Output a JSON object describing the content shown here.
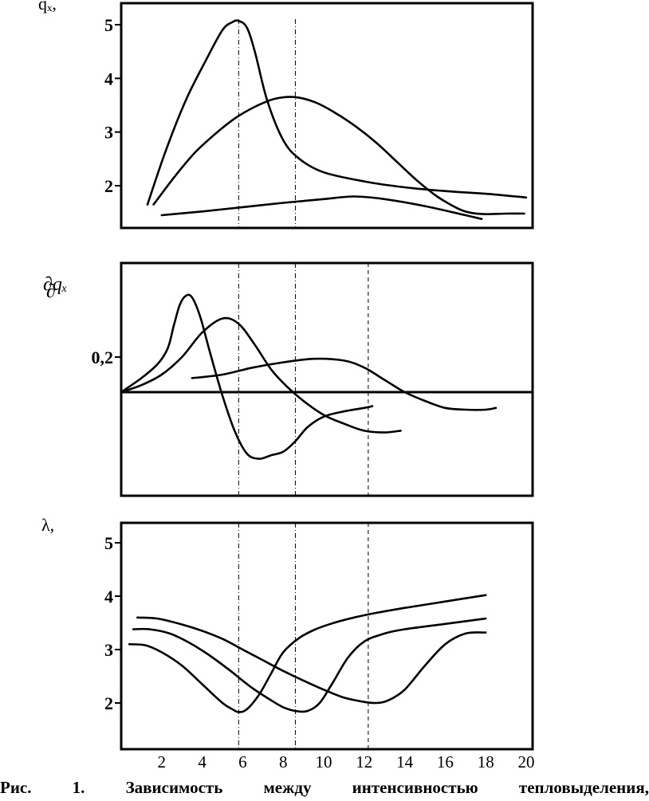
{
  "caption": "Рис.   1.   Зависимость   между   интенсивностью   тепловыделения,",
  "chart_data": [
    {
      "type": "line",
      "ylabel": "qₓ,",
      "x_ticks": [
        "2",
        "4",
        "6",
        "8",
        "10",
        "12",
        "14",
        "16",
        "18",
        "20"
      ],
      "y_ticks": [
        "5",
        "4",
        "3",
        "2"
      ],
      "xlim": [
        0,
        20.3
      ],
      "ylim": [
        1.25,
        5.4
      ],
      "series": [
        {
          "x": [
            1.3,
            2.2,
            3.2,
            4.2,
            5.0,
            5.5,
            5.8,
            6.2,
            6.6,
            7.2,
            8.0,
            8.8,
            10,
            12,
            14,
            16,
            18,
            20
          ],
          "y": [
            1.65,
            2.65,
            3.6,
            4.35,
            4.9,
            5.05,
            5.07,
            4.95,
            4.5,
            3.6,
            2.85,
            2.5,
            2.25,
            2.08,
            1.97,
            1.9,
            1.85,
            1.78
          ]
        },
        {
          "x": [
            1.6,
            2.6,
            3.6,
            4.6,
            5.6,
            6.6,
            7.6,
            8.6,
            9.6,
            10.6,
            11.6,
            12.6,
            13.6,
            14.6,
            15.6,
            16.6,
            17.2,
            18.0,
            19.0,
            19.9
          ],
          "y": [
            1.65,
            2.15,
            2.6,
            2.95,
            3.25,
            3.47,
            3.62,
            3.65,
            3.55,
            3.35,
            3.1,
            2.8,
            2.45,
            2.1,
            1.8,
            1.58,
            1.5,
            1.47,
            1.48,
            1.48
          ]
        },
        {
          "x": [
            2.0,
            4.0,
            6.0,
            8.0,
            10.0,
            11.5,
            13.0,
            15.0,
            17.0,
            17.8
          ],
          "y": [
            1.45,
            1.52,
            1.6,
            1.68,
            1.75,
            1.8,
            1.75,
            1.62,
            1.45,
            1.38
          ]
        }
      ],
      "guides_x": [
        5.8,
        8.6
      ]
    },
    {
      "type": "line",
      "ylabel": "∂qₓ",
      "ylabel_line2": "∂",
      "x_ticks": [],
      "y_ticks": [
        "0,2"
      ],
      "xlim": [
        0,
        20.3
      ],
      "ylim": [
        -0.45,
        0.6
      ],
      "baseline": 0.0,
      "series": [
        {
          "x": [
            0,
            1.0,
            1.8,
            2.3,
            2.6,
            2.9,
            3.2,
            3.5,
            3.9,
            4.4,
            5.0,
            5.6,
            6.2,
            6.8,
            7.4,
            8.0,
            8.6,
            9.2,
            10.0,
            11.0,
            12.0,
            12.4
          ],
          "y": [
            0.0,
            0.08,
            0.16,
            0.25,
            0.38,
            0.5,
            0.55,
            0.54,
            0.43,
            0.22,
            -0.02,
            -0.22,
            -0.35,
            -0.38,
            -0.36,
            -0.34,
            -0.28,
            -0.2,
            -0.14,
            -0.11,
            -0.09,
            -0.08
          ]
        },
        {
          "x": [
            0,
            1.0,
            2.0,
            3.0,
            4.0,
            5.0,
            5.8,
            6.6,
            7.4,
            8.2,
            9.0,
            10.0,
            11.0,
            12.0,
            13.0,
            13.8
          ],
          "y": [
            0.0,
            0.04,
            0.1,
            0.2,
            0.34,
            0.42,
            0.39,
            0.27,
            0.13,
            0.03,
            -0.05,
            -0.13,
            -0.18,
            -0.22,
            -0.23,
            -0.22
          ]
        },
        {
          "x": [
            3.5,
            5.0,
            6.5,
            8.0,
            9.5,
            11.0,
            12.0,
            13.0,
            14.0,
            15.0,
            16.0,
            17.0,
            18.0,
            18.5
          ],
          "y": [
            0.08,
            0.1,
            0.14,
            0.17,
            0.19,
            0.18,
            0.14,
            0.07,
            0.0,
            -0.05,
            -0.09,
            -0.1,
            -0.1,
            -0.09
          ]
        }
      ],
      "guides_x": [
        5.8,
        8.6,
        12.2
      ]
    },
    {
      "type": "line",
      "ylabel": "λ,",
      "x_ticks": [
        "2",
        "4",
        "6",
        "8",
        "10",
        "12",
        "14",
        "16",
        "18",
        "20"
      ],
      "y_ticks": [
        "5",
        "4",
        "3",
        "2"
      ],
      "xlim": [
        0,
        20.3
      ],
      "ylim": [
        1.0,
        5.4
      ],
      "series": [
        {
          "x": [
            0.4,
            1.2,
            2.0,
            3.0,
            4.0,
            5.0,
            5.5,
            5.8,
            6.2,
            6.8,
            7.4,
            8.0,
            8.8,
            9.6,
            10.5,
            11.5,
            12.5,
            14,
            16,
            18
          ],
          "y": [
            3.1,
            3.08,
            2.95,
            2.7,
            2.35,
            2.0,
            1.88,
            1.83,
            1.88,
            2.15,
            2.55,
            2.95,
            3.22,
            3.38,
            3.5,
            3.6,
            3.68,
            3.78,
            3.9,
            4.02
          ]
        },
        {
          "x": [
            0.6,
            1.4,
            2.4,
            3.4,
            4.4,
            5.4,
            6.4,
            7.4,
            8.0,
            8.6,
            9.2,
            9.8,
            10.4,
            11.2,
            12.0,
            13,
            14,
            16,
            18
          ],
          "y": [
            3.38,
            3.38,
            3.3,
            3.12,
            2.88,
            2.6,
            2.3,
            2.05,
            1.92,
            1.85,
            1.85,
            2.0,
            2.35,
            2.85,
            3.15,
            3.3,
            3.38,
            3.48,
            3.58
          ]
        },
        {
          "x": [
            0.8,
            1.8,
            3.0,
            4.0,
            5.0,
            6.0,
            7.0,
            8.0,
            9.0,
            10.0,
            11.0,
            12.0,
            12.6,
            13.2,
            14.0,
            15.0,
            16.0,
            17.0,
            18.0
          ],
          "y": [
            3.6,
            3.58,
            3.47,
            3.35,
            3.2,
            3.0,
            2.8,
            2.6,
            2.42,
            2.25,
            2.1,
            2.02,
            2.0,
            2.05,
            2.25,
            2.7,
            3.1,
            3.3,
            3.32
          ]
        }
      ],
      "guides_x": [
        5.8,
        8.6,
        12.2
      ]
    }
  ]
}
